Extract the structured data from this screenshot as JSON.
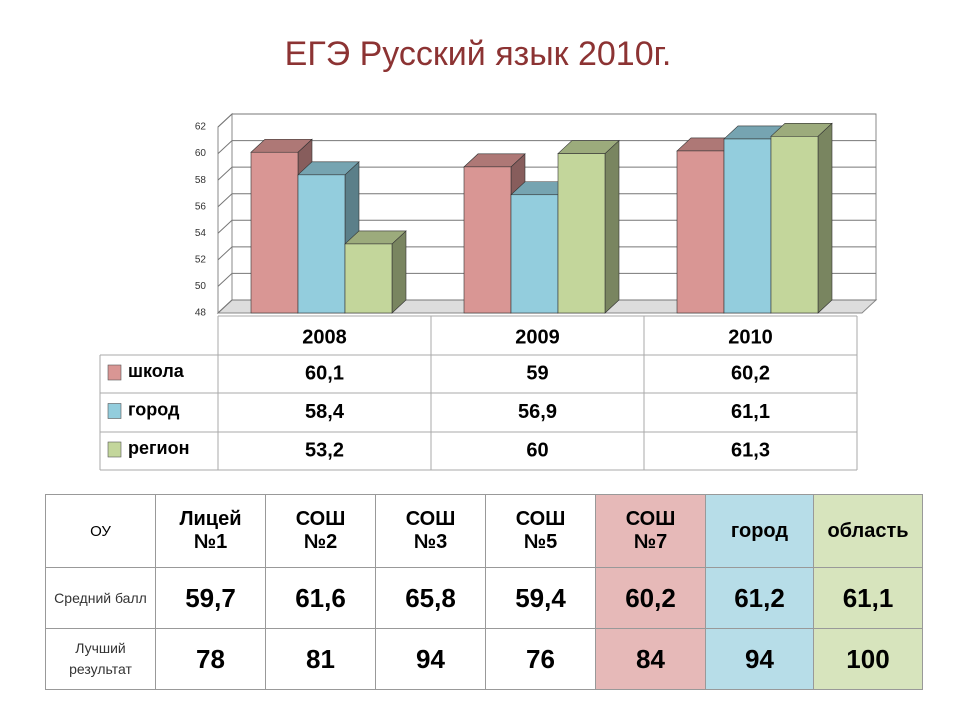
{
  "chart_data": {
    "type": "bar3d",
    "title": "ЕГЭ Русский язык 2010г.",
    "categories": [
      "2008",
      "2009",
      "2010"
    ],
    "series": [
      {
        "name": "школа",
        "color": "#d99694",
        "values": [
          60.1,
          59,
          60.2
        ],
        "value_labels": [
          "60,1",
          "59",
          "60,2"
        ]
      },
      {
        "name": "город",
        "color": "#93cddd",
        "values": [
          58.4,
          56.9,
          61.1
        ],
        "value_labels": [
          "58,4",
          "56,9",
          "61,1"
        ]
      },
      {
        "name": "регион",
        "color": "#c3d69b",
        "values": [
          53.2,
          60,
          61.3
        ],
        "value_labels": [
          "53,2",
          "60",
          "61,3"
        ]
      }
    ],
    "ylim": [
      48,
      62
    ],
    "yticks": [
      48,
      50,
      52,
      54,
      56,
      58,
      60,
      62
    ],
    "grid": true
  },
  "table": {
    "header": [
      "ОУ",
      "Лицей №1",
      "СОШ №2",
      "СОШ №3",
      "СОШ №5",
      "СОШ №7",
      "город",
      "область"
    ],
    "rows": [
      [
        "Средний балл",
        "59,7",
        "61,6",
        "65,8",
        "59,4",
        "60,2",
        "61,2",
        "61,1"
      ],
      [
        "Лучший результат",
        "78",
        "81",
        "94",
        "76",
        "84",
        "94",
        "100"
      ]
    ]
  }
}
